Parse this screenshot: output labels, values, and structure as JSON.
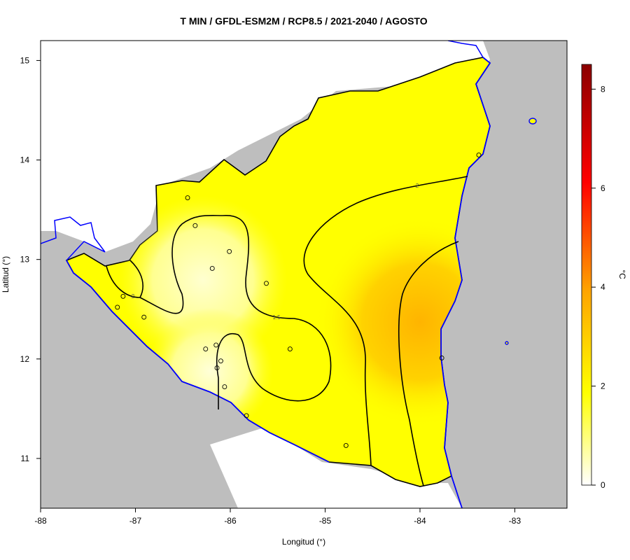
{
  "chart_data": {
    "type": "heatmap",
    "title": "T MIN / GFDL-ESM2M / RCP8.5 / 2021-2040 / AGOSTO",
    "xlabel": "Longitud (°)",
    "ylabel": "Latitud (°)",
    "xlim": [
      -88.0,
      -82.45
    ],
    "ylim": [
      10.5,
      15.2
    ],
    "x_ticks": [
      -88,
      -87,
      -86,
      -85,
      -84,
      -83
    ],
    "x_tick_labels": [
      "-88",
      "-87",
      "-86",
      "-85",
      "-84",
      "-83"
    ],
    "y_ticks": [
      11,
      12,
      13,
      14,
      15
    ],
    "y_tick_labels": [
      "11",
      "12",
      "13",
      "14",
      "15"
    ],
    "colorbar": {
      "label": "°C",
      "min": 0,
      "max": 8.5,
      "ticks": [
        0,
        2,
        4,
        6,
        8
      ],
      "tick_labels": [
        "0",
        "2",
        "4",
        "6",
        "8"
      ],
      "colors": [
        "#ffffff",
        "#ffff00",
        "#ffa500",
        "#ff0000",
        "#8b0000"
      ]
    },
    "contours": [
      {
        "label": "2",
        "value": 2
      },
      {
        "label": "1.5",
        "value": 1.5
      },
      {
        "label": "2",
        "value": 2
      }
    ],
    "stations": [
      {
        "lon": -86.45,
        "lat": 13.62
      },
      {
        "lon": -86.37,
        "lat": 13.34
      },
      {
        "lon": -86.01,
        "lat": 13.08
      },
      {
        "lon": -86.19,
        "lat": 12.91
      },
      {
        "lon": -85.62,
        "lat": 12.76
      },
      {
        "lon": -87.13,
        "lat": 12.63
      },
      {
        "lon": -87.19,
        "lat": 12.52
      },
      {
        "lon": -86.91,
        "lat": 12.42
      },
      {
        "lon": -86.26,
        "lat": 12.1
      },
      {
        "lon": -86.15,
        "lat": 12.14
      },
      {
        "lon": -85.37,
        "lat": 12.1
      },
      {
        "lon": -86.1,
        "lat": 11.98
      },
      {
        "lon": -86.14,
        "lat": 11.91
      },
      {
        "lon": -86.06,
        "lat": 11.72
      },
      {
        "lon": -85.83,
        "lat": 11.43
      },
      {
        "lon": -84.78,
        "lat": 11.13
      },
      {
        "lon": -83.77,
        "lat": 12.01
      },
      {
        "lon": -83.38,
        "lat": 14.05
      }
    ]
  }
}
